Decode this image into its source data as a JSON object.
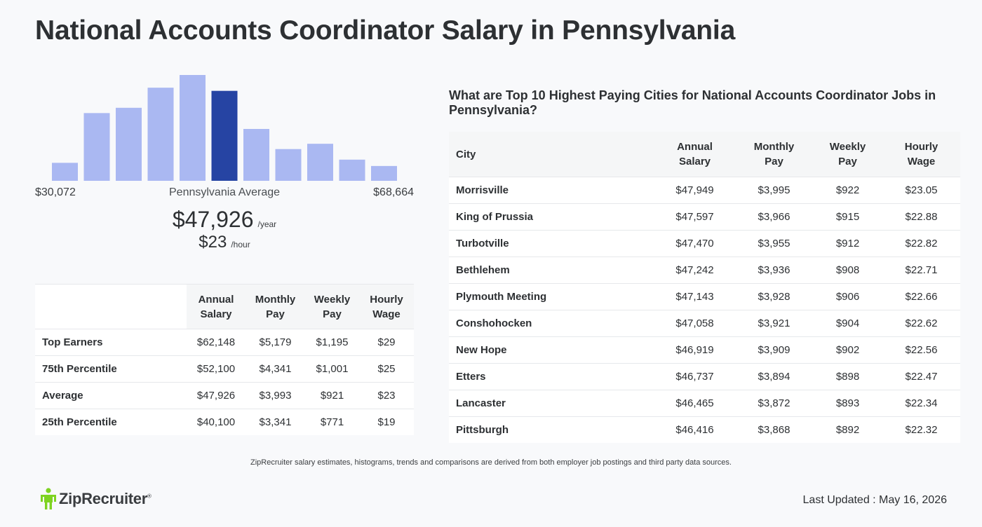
{
  "title": "National Accounts Coordinator Salary in Pennsylvania",
  "histogram": {
    "min_label": "$30,072",
    "max_label": "$68,664",
    "avg_label": "Pennsylvania Average",
    "bar_heights_relative": [
      0.17,
      0.64,
      0.69,
      0.88,
      1.0,
      0.85,
      0.49,
      0.3,
      0.35,
      0.2,
      0.14
    ],
    "highlight_index": 5,
    "bar_color": "#aab8f2",
    "highlight_color": "#2644a3"
  },
  "average": {
    "yearly": "$47,926",
    "yearly_unit": "/year",
    "hourly": "$23",
    "hourly_unit": "/hour"
  },
  "percentile_table": {
    "headers": [
      {
        "line1": "Annual",
        "line2": "Salary"
      },
      {
        "line1": "Monthly",
        "line2": "Pay"
      },
      {
        "line1": "Weekly",
        "line2": "Pay"
      },
      {
        "line1": "Hourly",
        "line2": "Wage"
      }
    ],
    "rows": [
      {
        "label": "Top Earners",
        "annual": "$62,148",
        "monthly": "$5,179",
        "weekly": "$1,195",
        "hourly": "$29"
      },
      {
        "label": "75th Percentile",
        "annual": "$52,100",
        "monthly": "$4,341",
        "weekly": "$1,001",
        "hourly": "$25"
      },
      {
        "label": "Average",
        "annual": "$47,926",
        "monthly": "$3,993",
        "weekly": "$921",
        "hourly": "$23"
      },
      {
        "label": "25th Percentile",
        "annual": "$40,100",
        "monthly": "$3,341",
        "weekly": "$771",
        "hourly": "$19"
      }
    ]
  },
  "cities": {
    "heading": "What are Top 10 Highest Paying Cities for National Accounts Coordinator Jobs in Pennsylvania?",
    "city_header": "City",
    "headers": [
      {
        "line1": "Annual",
        "line2": "Salary"
      },
      {
        "line1": "Monthly",
        "line2": "Pay"
      },
      {
        "line1": "Weekly",
        "line2": "Pay"
      },
      {
        "line1": "Hourly",
        "line2": "Wage"
      }
    ],
    "rows": [
      {
        "city": "Morrisville",
        "annual": "$47,949",
        "monthly": "$3,995",
        "weekly": "$922",
        "hourly": "$23.05"
      },
      {
        "city": "King of Prussia",
        "annual": "$47,597",
        "monthly": "$3,966",
        "weekly": "$915",
        "hourly": "$22.88"
      },
      {
        "city": "Turbotville",
        "annual": "$47,470",
        "monthly": "$3,955",
        "weekly": "$912",
        "hourly": "$22.82"
      },
      {
        "city": "Bethlehem",
        "annual": "$47,242",
        "monthly": "$3,936",
        "weekly": "$908",
        "hourly": "$22.71"
      },
      {
        "city": "Plymouth Meeting",
        "annual": "$47,143",
        "monthly": "$3,928",
        "weekly": "$906",
        "hourly": "$22.66"
      },
      {
        "city": "Conshohocken",
        "annual": "$47,058",
        "monthly": "$3,921",
        "weekly": "$904",
        "hourly": "$22.62"
      },
      {
        "city": "New Hope",
        "annual": "$46,919",
        "monthly": "$3,909",
        "weekly": "$902",
        "hourly": "$22.56"
      },
      {
        "city": "Etters",
        "annual": "$46,737",
        "monthly": "$3,894",
        "weekly": "$898",
        "hourly": "$22.47"
      },
      {
        "city": "Lancaster",
        "annual": "$46,465",
        "monthly": "$3,872",
        "weekly": "$893",
        "hourly": "$22.34"
      },
      {
        "city": "Pittsburgh",
        "annual": "$46,416",
        "monthly": "$3,868",
        "weekly": "$892",
        "hourly": "$22.32"
      }
    ]
  },
  "footer": {
    "disclaimer": "ZipRecruiter salary estimates, histograms, trends and comparisons are derived from both employer job postings and third party data sources.",
    "logo_text": "ZipRecruiter",
    "logo_mark": "®",
    "logo_icon": "ziprecruiter-person-icon",
    "logo_color": "#7ed321",
    "last_updated": "Last Updated : May 16, 2026"
  }
}
